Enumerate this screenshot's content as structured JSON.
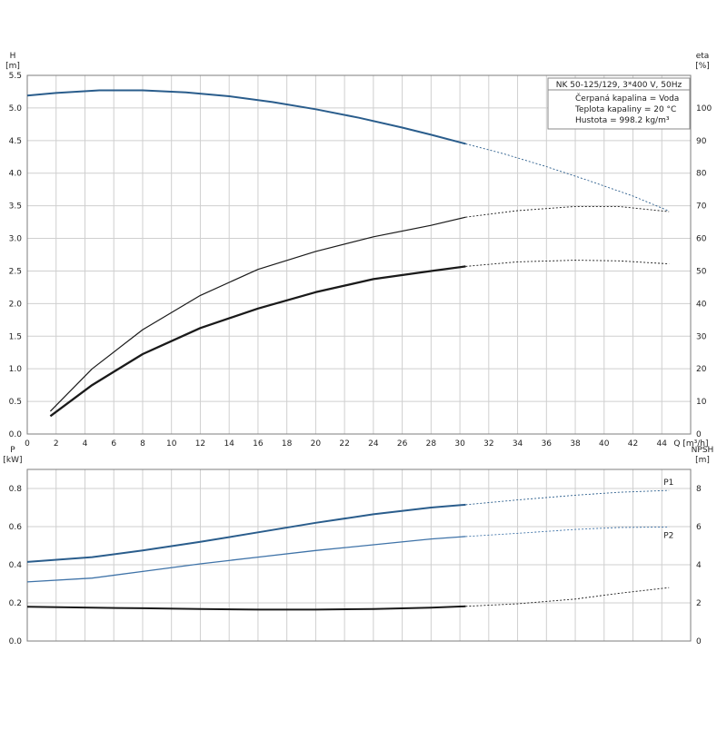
{
  "colors": {
    "blue_main": "#2a5d8c",
    "blue_light": "#3f73a8",
    "dark": "#1a1a1a",
    "grid": "#cfcfcf",
    "label_blue": "#3a6ea5"
  },
  "info": {
    "title": "NK 50-125/129, 3*400 V, 50Hz",
    "liquid": "Čerpaná kapalina = Voda",
    "temperature": "Teplota kapaliny = 20 °C",
    "density": "Hustota = 998.2 kg/m³"
  },
  "chart_data": [
    {
      "type": "line",
      "x_axis": {
        "label": "Q [m³/h]",
        "range": [
          0,
          46
        ],
        "ticks": [
          0,
          2,
          4,
          6,
          8,
          10,
          12,
          14,
          16,
          18,
          20,
          22,
          24,
          26,
          28,
          30,
          32,
          34,
          36,
          38,
          40,
          42,
          44
        ]
      },
      "y_left": {
        "label_top": "H",
        "label_unit": "[m]",
        "range": [
          0,
          5.5
        ],
        "ticks": [
          "0.0",
          "0.5",
          "1.0",
          "1.5",
          "2.0",
          "2.5",
          "3.0",
          "3.5",
          "4.0",
          "4.5",
          "5.0",
          "5.5"
        ]
      },
      "y_right": {
        "label_top": "eta",
        "label_unit": "[%]",
        "range": [
          0,
          110
        ],
        "ticks": [
          "0",
          "10",
          "20",
          "30",
          "40",
          "50",
          "60",
          "70",
          "80",
          "90",
          "100"
        ]
      },
      "grid": true,
      "series": [
        {
          "axis": "left",
          "solid_until": 30.4,
          "color": "#2a5d8c",
          "width": 2,
          "points": [
            [
              0,
              5.19
            ],
            [
              2,
              5.23
            ],
            [
              5,
              5.27
            ],
            [
              8,
              5.27
            ],
            [
              11,
              5.24
            ],
            [
              14,
              5.18
            ],
            [
              17,
              5.09
            ],
            [
              20,
              4.98
            ],
            [
              23,
              4.85
            ],
            [
              26,
              4.7
            ],
            [
              28,
              4.59
            ],
            [
              30.4,
              4.45
            ],
            [
              33,
              4.3
            ],
            [
              36,
              4.1
            ],
            [
              39,
              3.88
            ],
            [
              42,
              3.65
            ],
            [
              44.5,
              3.42
            ]
          ]
        },
        {
          "axis": "right",
          "solid_until": 30.4,
          "color": "#1a1a1a",
          "width": 1.2,
          "points": [
            [
              1.6,
              7
            ],
            [
              4.5,
              20
            ],
            [
              8,
              32
            ],
            [
              12,
              42.5
            ],
            [
              16,
              50.5
            ],
            [
              20,
              56
            ],
            [
              24,
              60.5
            ],
            [
              28,
              64
            ],
            [
              30.4,
              66.5
            ],
            [
              34,
              68.5
            ],
            [
              38,
              69.8
            ],
            [
              41,
              69.8
            ],
            [
              44.5,
              68.2
            ]
          ]
        },
        {
          "axis": "right",
          "solid_until": 30.4,
          "color": "#1a1a1a",
          "width": 2.3,
          "points": [
            [
              1.6,
              5.5
            ],
            [
              4.5,
              15
            ],
            [
              8,
              24.5
            ],
            [
              12,
              32.5
            ],
            [
              16,
              38.5
            ],
            [
              20,
              43.5
            ],
            [
              24,
              47.5
            ],
            [
              28,
              50
            ],
            [
              30.4,
              51.4
            ],
            [
              34,
              52.8
            ],
            [
              38,
              53.3
            ],
            [
              41,
              53.1
            ],
            [
              44.5,
              52.2
            ]
          ]
        }
      ]
    },
    {
      "type": "line",
      "x_axis": {
        "range": [
          0,
          46
        ],
        "ticks": []
      },
      "y_left": {
        "label_top": "P",
        "label_unit": "[kW]",
        "range": [
          0,
          0.9
        ],
        "ticks": [
          "0.0",
          "0.2",
          "0.4",
          "0.6",
          "0.8"
        ]
      },
      "y_right": {
        "label_top": "NPSH",
        "label_unit": "[m]",
        "range": [
          0,
          9
        ],
        "ticks": [
          "0",
          "2",
          "4",
          "6",
          "8"
        ]
      },
      "grid": true,
      "series": [
        {
          "name": "P1",
          "axis": "left",
          "solid_until": 30.4,
          "color": "#2a5d8c",
          "width": 2,
          "points": [
            [
              0,
              0.415
            ],
            [
              4.5,
              0.44
            ],
            [
              8,
              0.475
            ],
            [
              12,
              0.52
            ],
            [
              16,
              0.57
            ],
            [
              20,
              0.62
            ],
            [
              24,
              0.665
            ],
            [
              28,
              0.7
            ],
            [
              30.4,
              0.715
            ],
            [
              34,
              0.74
            ],
            [
              38,
              0.765
            ],
            [
              41,
              0.78
            ],
            [
              44.5,
              0.79
            ]
          ]
        },
        {
          "name": "P2",
          "axis": "left",
          "solid_until": 30.4,
          "color": "#3f73a8",
          "width": 1.3,
          "points": [
            [
              0,
              0.31
            ],
            [
              4.5,
              0.33
            ],
            [
              8,
              0.365
            ],
            [
              12,
              0.405
            ],
            [
              16,
              0.44
            ],
            [
              20,
              0.475
            ],
            [
              24,
              0.505
            ],
            [
              28,
              0.535
            ],
            [
              30.4,
              0.548
            ],
            [
              34,
              0.565
            ],
            [
              38,
              0.585
            ],
            [
              41,
              0.595
            ],
            [
              44.5,
              0.598
            ]
          ]
        },
        {
          "axis": "right",
          "solid_until": 30.4,
          "color": "#1a1a1a",
          "width": 2,
          "points": [
            [
              0,
              1.8
            ],
            [
              4.5,
              1.75
            ],
            [
              8,
              1.72
            ],
            [
              12,
              1.68
            ],
            [
              16,
              1.65
            ],
            [
              20,
              1.65
            ],
            [
              24,
              1.68
            ],
            [
              28,
              1.75
            ],
            [
              30.4,
              1.82
            ],
            [
              34,
              1.95
            ],
            [
              38,
              2.2
            ],
            [
              41,
              2.5
            ],
            [
              44.5,
              2.8
            ]
          ]
        }
      ]
    }
  ]
}
